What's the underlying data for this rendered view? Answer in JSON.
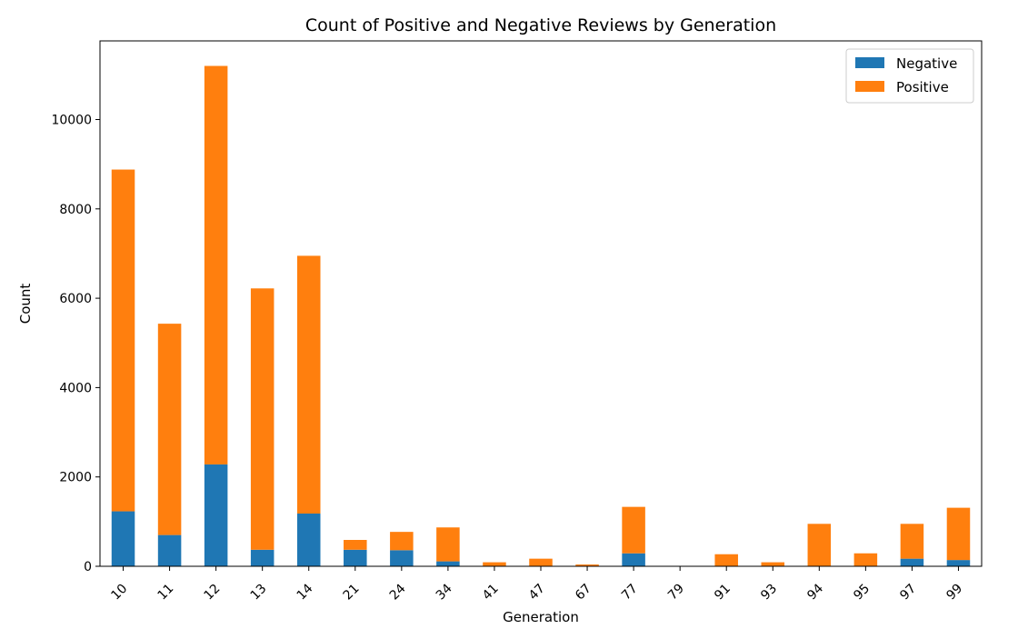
{
  "chart_data": {
    "type": "bar",
    "stacked": true,
    "title": "Count of Positive and Negative Reviews by Generation",
    "xlabel": "Generation",
    "ylabel": "Count",
    "categories": [
      "10",
      "11",
      "12",
      "13",
      "14",
      "21",
      "24",
      "34",
      "41",
      "47",
      "67",
      "77",
      "79",
      "91",
      "93",
      "94",
      "95",
      "97",
      "99"
    ],
    "series": [
      {
        "name": "Negative",
        "color": "#1f77b4",
        "values": [
          1230,
          700,
          2280,
          370,
          1180,
          370,
          360,
          110,
          10,
          10,
          5,
          290,
          0,
          10,
          10,
          10,
          10,
          170,
          140
        ]
      },
      {
        "name": "Positive",
        "color": "#ff7f0e",
        "values": [
          7650,
          4730,
          8920,
          5850,
          5770,
          220,
          410,
          760,
          80,
          160,
          35,
          1040,
          0,
          260,
          80,
          940,
          280,
          780,
          1170
        ]
      }
    ],
    "yticks": [
      "0",
      "2000",
      "4000",
      "6000",
      "8000",
      "10000"
    ],
    "ylim": [
      0,
      11760
    ],
    "legend": "top-right",
    "grid": false
  }
}
